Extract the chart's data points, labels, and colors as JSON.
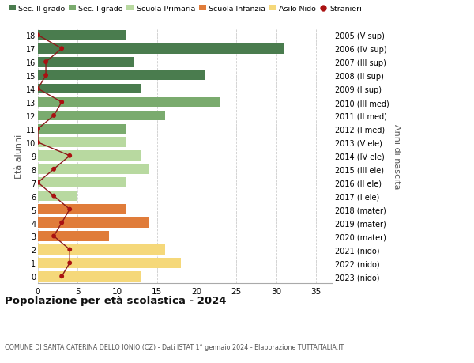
{
  "ages": [
    18,
    17,
    16,
    15,
    14,
    13,
    12,
    11,
    10,
    9,
    8,
    7,
    6,
    5,
    4,
    3,
    2,
    1,
    0
  ],
  "right_labels": [
    "2005 (V sup)",
    "2006 (IV sup)",
    "2007 (III sup)",
    "2008 (II sup)",
    "2009 (I sup)",
    "2010 (III med)",
    "2011 (II med)",
    "2012 (I med)",
    "2013 (V ele)",
    "2014 (IV ele)",
    "2015 (III ele)",
    "2016 (II ele)",
    "2017 (I ele)",
    "2018 (mater)",
    "2019 (mater)",
    "2020 (mater)",
    "2021 (nido)",
    "2022 (nido)",
    "2023 (nido)"
  ],
  "bar_values": [
    11,
    31,
    12,
    21,
    13,
    23,
    16,
    11,
    11,
    13,
    14,
    11,
    5,
    11,
    14,
    9,
    16,
    18,
    13
  ],
  "bar_colors": [
    "#4a7c4e",
    "#4a7c4e",
    "#4a7c4e",
    "#4a7c4e",
    "#4a7c4e",
    "#7aab6e",
    "#7aab6e",
    "#7aab6e",
    "#b8d9a0",
    "#b8d9a0",
    "#b8d9a0",
    "#b8d9a0",
    "#b8d9a0",
    "#e07c3a",
    "#e07c3a",
    "#e07c3a",
    "#f5d87a",
    "#f5d87a",
    "#f5d87a"
  ],
  "stranieri_values": [
    0,
    3,
    1,
    1,
    0,
    3,
    2,
    0,
    0,
    4,
    2,
    0,
    2,
    4,
    3,
    2,
    4,
    4,
    3
  ],
  "legend_labels": [
    "Sec. II grado",
    "Sec. I grado",
    "Scuola Primaria",
    "Scuola Infanzia",
    "Asilo Nido",
    "Stranieri"
  ],
  "legend_colors": [
    "#4a7c4e",
    "#7aab6e",
    "#b8d9a0",
    "#e07c3a",
    "#f5d87a",
    "#aa1111"
  ],
  "title": "Popolazione per età scolastica - 2024",
  "subtitle": "COMUNE DI SANTA CATERINA DELLO IONIO (CZ) - Dati ISTAT 1° gennaio 2024 - Elaborazione TUTTAITALIA.IT",
  "ylabel_left": "Età alunni",
  "ylabel_right": "Anni di nascita",
  "xlim": [
    0,
    37
  ],
  "background_color": "#ffffff",
  "grid_color": "#cccccc"
}
